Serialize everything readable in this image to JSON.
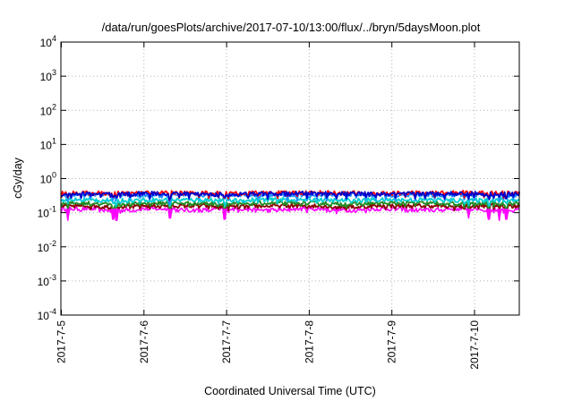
{
  "chart_data": {
    "type": "line",
    "title": "/data/run/goesPlots/archive/2017-07-10/13:00/flux/../bryn/5daysMoon.plot",
    "xlabel": "Coordinated Universal Time (UTC)",
    "ylabel": "cGy/day",
    "y_scale": "log",
    "ylim": [
      0.0001,
      10000
    ],
    "xlim": [
      "2017-07-05 00:00",
      "2017-07-10 13:00"
    ],
    "grid": true,
    "legend": "none",
    "y_ticks": [
      {
        "base": "10",
        "exp": "4",
        "value": 10000
      },
      {
        "base": "10",
        "exp": "3",
        "value": 1000
      },
      {
        "base": "10",
        "exp": "2",
        "value": 100
      },
      {
        "base": "10",
        "exp": "1",
        "value": 10
      },
      {
        "base": "10",
        "exp": "0",
        "value": 1
      },
      {
        "base": "10",
        "exp": "-1",
        "value": 0.1
      },
      {
        "base": "10",
        "exp": "-2",
        "value": 0.01
      },
      {
        "base": "10",
        "exp": "-3",
        "value": 0.001
      },
      {
        "base": "10",
        "exp": "-4",
        "value": 0.0001
      }
    ],
    "x_ticks": [
      "2017-7-5",
      "2017-7-6",
      "2017-7-7",
      "2017-7-8",
      "2017-7-9",
      "2017-7-10"
    ],
    "series": [
      {
        "color": "#ff00ff",
        "typical": 0.13,
        "values": [
          0.13,
          0.12,
          0.13,
          0.12,
          0.13,
          0.12,
          0.13,
          0.12,
          0.13,
          0.12,
          0.13,
          0.12
        ]
      },
      {
        "color": "#8b0000",
        "typical": 0.16,
        "values": [
          0.16,
          0.15,
          0.16,
          0.16,
          0.15,
          0.16,
          0.16,
          0.15,
          0.16,
          0.16,
          0.15,
          0.16
        ]
      },
      {
        "color": "#228b22",
        "typical": 0.19,
        "values": [
          0.19,
          0.18,
          0.19,
          0.19,
          0.18,
          0.19,
          0.19,
          0.18,
          0.19,
          0.19,
          0.18,
          0.19
        ]
      },
      {
        "color": "#00ced1",
        "typical": 0.24,
        "values": [
          0.24,
          0.23,
          0.24,
          0.24,
          0.23,
          0.24,
          0.24,
          0.23,
          0.24,
          0.24,
          0.23,
          0.24
        ]
      },
      {
        "color": "#1e90ff",
        "typical": 0.33,
        "values": [
          0.33,
          0.34,
          0.32,
          0.33,
          0.34,
          0.33,
          0.32,
          0.34,
          0.33,
          0.33,
          0.34,
          0.33
        ]
      },
      {
        "color": "#ff0000",
        "typical": 0.38,
        "values": [
          0.38,
          0.37,
          0.39,
          0.38,
          0.37,
          0.38,
          0.39,
          0.38,
          0.37,
          0.38,
          0.39,
          0.38
        ]
      },
      {
        "color": "#0000cd",
        "typical": 0.36,
        "values": [
          0.36,
          0.35,
          0.37,
          0.36,
          0.35,
          0.36,
          0.37,
          0.36,
          0.35,
          0.36,
          0.37,
          0.36
        ]
      }
    ],
    "dips": [
      {
        "day_offset": 0.08,
        "min": 0.06
      },
      {
        "day_offset": 0.63,
        "min": 0.065
      },
      {
        "day_offset": 0.67,
        "min": 0.06
      },
      {
        "day_offset": 1.32,
        "min": 0.07
      },
      {
        "day_offset": 1.98,
        "min": 0.065
      },
      {
        "day_offset": 4.93,
        "min": 0.07
      },
      {
        "day_offset": 5.17,
        "min": 0.065
      },
      {
        "day_offset": 5.3,
        "min": 0.06
      },
      {
        "day_offset": 5.38,
        "min": 0.065
      }
    ]
  }
}
